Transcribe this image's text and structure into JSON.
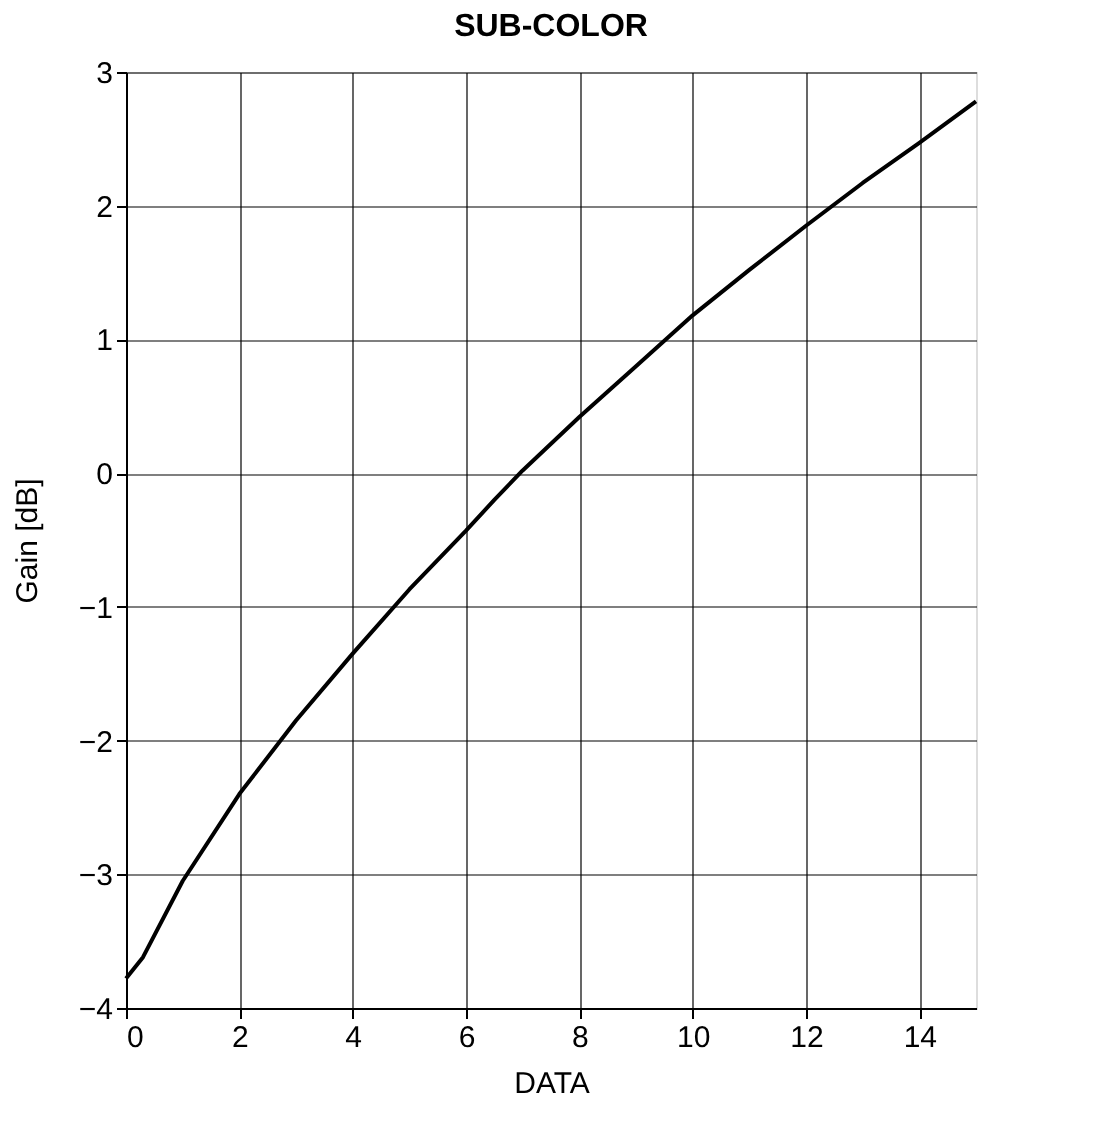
{
  "chart_data": {
    "type": "line",
    "title": "SUB-COLOR",
    "xlabel": "DATA",
    "ylabel": "Gain [dB]",
    "x": [
      0,
      0.3,
      1,
      2,
      3,
      4,
      5,
      6,
      6.5,
      7,
      8,
      9,
      10,
      11,
      12,
      13,
      14,
      15
    ],
    "series": [
      {
        "color": "#000000",
        "values": [
          -3.78,
          -3.62,
          -3.05,
          -2.4,
          -1.85,
          -1.35,
          -0.87,
          -0.43,
          -0.2,
          0.02,
          0.42,
          0.8,
          1.18,
          1.52,
          1.85,
          2.17,
          2.47,
          2.78
        ]
      }
    ],
    "xlim": [
      0,
      15
    ],
    "xticks": [
      0,
      2,
      4,
      6,
      8,
      10,
      12,
      14
    ],
    "ylim": [
      -4,
      3
    ],
    "yticks": [
      {
        "value": -4,
        "label": "−4"
      },
      {
        "value": -3,
        "label": "−3"
      },
      {
        "value": -2,
        "label": "−2"
      },
      {
        "value": -1,
        "label": "−1"
      },
      0,
      1,
      2,
      3
    ],
    "grid": true,
    "marker": "none",
    "line_style": "solid"
  }
}
